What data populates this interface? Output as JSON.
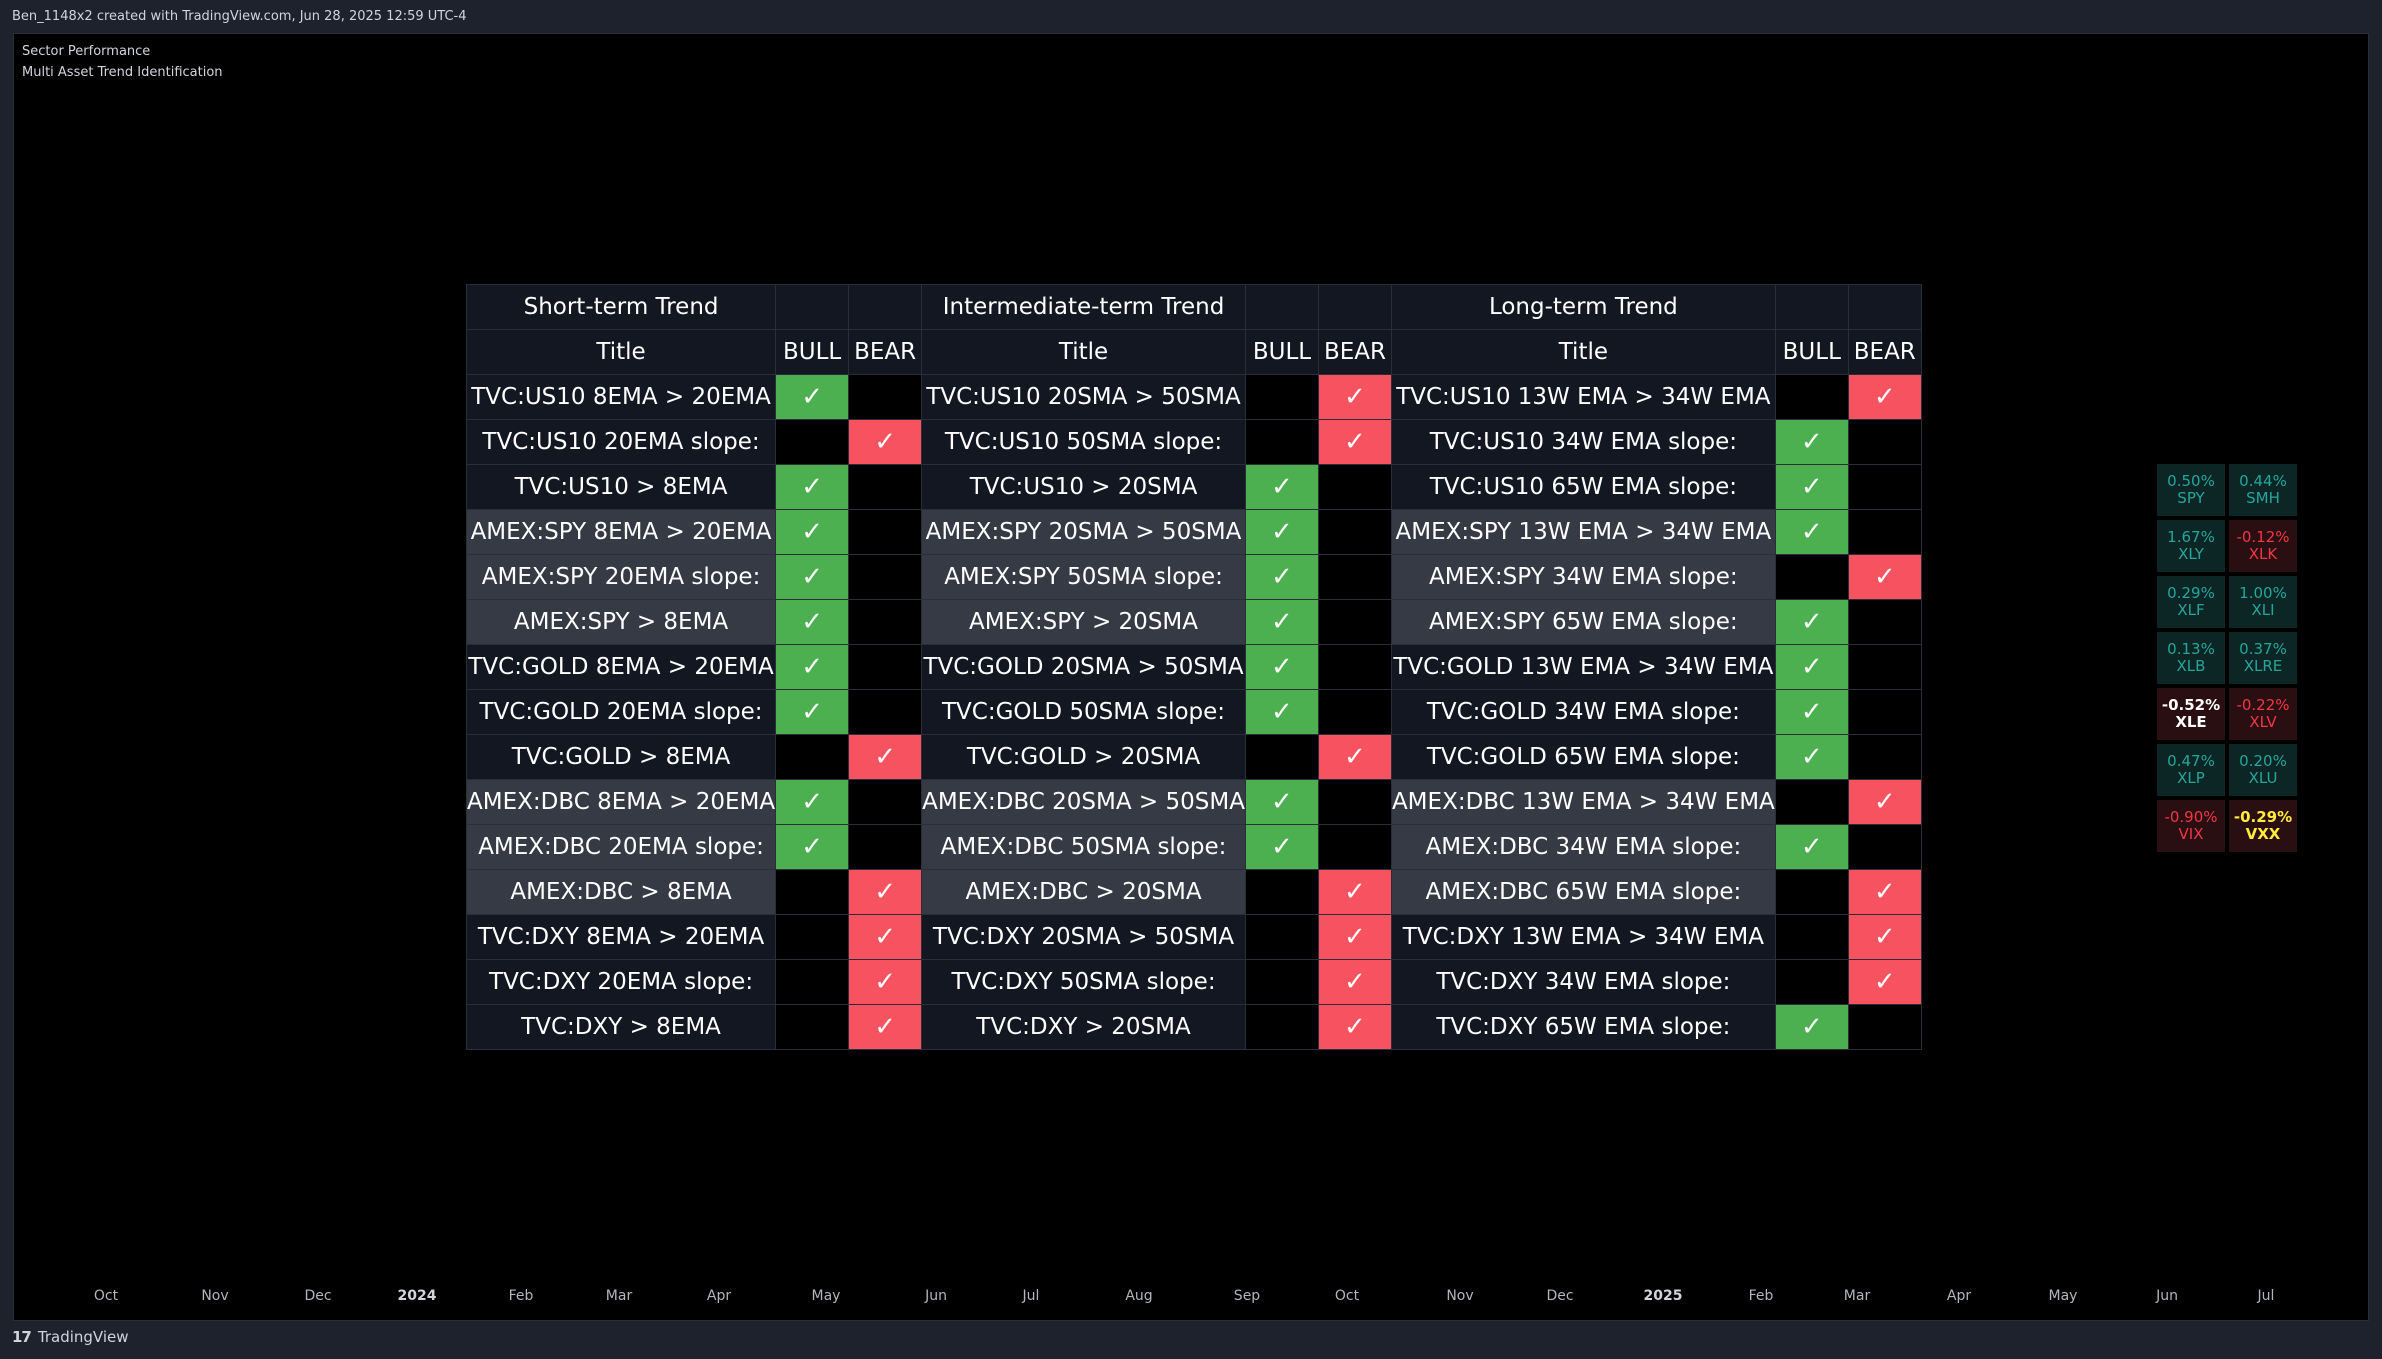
{
  "header": {
    "text": "Ben_1148x2 created with TradingView.com, Jun 28, 2025 12:59 UTC-4"
  },
  "legend": {
    "line1": "Sector Performance",
    "line2": "Multi Asset Trend Identification"
  },
  "table": {
    "sections": [
      "Short-term Trend",
      "Intermediate-term Trend",
      "Long-term Trend"
    ],
    "col_title": "Title",
    "col_bull": "BULL",
    "col_bear": "BEAR",
    "check": "✓",
    "rows": [
      {
        "shade": "dark",
        "cells": [
          {
            "title": "TVC:US10 8EMA > 20EMA",
            "flag": "bull"
          },
          {
            "title": "TVC:US10 20SMA > 50SMA",
            "flag": "bear"
          },
          {
            "title": "TVC:US10 13W EMA > 34W EMA",
            "flag": "bear"
          }
        ]
      },
      {
        "shade": "dark",
        "cells": [
          {
            "title": "TVC:US10 20EMA slope:",
            "flag": "bear"
          },
          {
            "title": "TVC:US10 50SMA slope:",
            "flag": "bear"
          },
          {
            "title": "TVC:US10 34W EMA slope:",
            "flag": "bull"
          }
        ]
      },
      {
        "shade": "dark",
        "cells": [
          {
            "title": "TVC:US10 > 8EMA",
            "flag": "bull"
          },
          {
            "title": "TVC:US10 > 20SMA",
            "flag": "bull"
          },
          {
            "title": "TVC:US10 65W EMA slope:",
            "flag": "bull"
          }
        ]
      },
      {
        "shade": "gray",
        "cells": [
          {
            "title": "AMEX:SPY 8EMA > 20EMA",
            "flag": "bull"
          },
          {
            "title": "AMEX:SPY 20SMA > 50SMA",
            "flag": "bull"
          },
          {
            "title": "AMEX:SPY 13W EMA > 34W EMA",
            "flag": "bull"
          }
        ]
      },
      {
        "shade": "gray",
        "cells": [
          {
            "title": "AMEX:SPY 20EMA slope:",
            "flag": "bull"
          },
          {
            "title": "AMEX:SPY 50SMA slope:",
            "flag": "bull"
          },
          {
            "title": "AMEX:SPY 34W EMA slope:",
            "flag": "bear"
          }
        ]
      },
      {
        "shade": "gray",
        "cells": [
          {
            "title": "AMEX:SPY > 8EMA",
            "flag": "bull"
          },
          {
            "title": "AMEX:SPY > 20SMA",
            "flag": "bull"
          },
          {
            "title": "AMEX:SPY 65W EMA slope:",
            "flag": "bull"
          }
        ]
      },
      {
        "shade": "dark",
        "cells": [
          {
            "title": "TVC:GOLD 8EMA > 20EMA",
            "flag": "bull"
          },
          {
            "title": "TVC:GOLD 20SMA > 50SMA",
            "flag": "bull"
          },
          {
            "title": "TVC:GOLD 13W EMA > 34W EMA",
            "flag": "bull"
          }
        ]
      },
      {
        "shade": "dark",
        "cells": [
          {
            "title": "TVC:GOLD 20EMA slope:",
            "flag": "bull"
          },
          {
            "title": "TVC:GOLD 50SMA slope:",
            "flag": "bull"
          },
          {
            "title": "TVC:GOLD 34W EMA slope:",
            "flag": "bull"
          }
        ]
      },
      {
        "shade": "dark",
        "cells": [
          {
            "title": "TVC:GOLD > 8EMA",
            "flag": "bear"
          },
          {
            "title": "TVC:GOLD > 20SMA",
            "flag": "bear"
          },
          {
            "title": "TVC:GOLD 65W EMA slope:",
            "flag": "bull"
          }
        ]
      },
      {
        "shade": "gray",
        "cells": [
          {
            "title": "AMEX:DBC 8EMA > 20EMA",
            "flag": "bull"
          },
          {
            "title": "AMEX:DBC 20SMA > 50SMA",
            "flag": "bull"
          },
          {
            "title": "AMEX:DBC 13W EMA > 34W EMA",
            "flag": "bear"
          }
        ]
      },
      {
        "shade": "gray",
        "cells": [
          {
            "title": "AMEX:DBC 20EMA slope:",
            "flag": "bull"
          },
          {
            "title": "AMEX:DBC 50SMA slope:",
            "flag": "bull"
          },
          {
            "title": "AMEX:DBC 34W EMA slope:",
            "flag": "bull"
          }
        ]
      },
      {
        "shade": "gray",
        "cells": [
          {
            "title": "AMEX:DBC > 8EMA",
            "flag": "bear"
          },
          {
            "title": "AMEX:DBC > 20SMA",
            "flag": "bear"
          },
          {
            "title": "AMEX:DBC 65W EMA slope:",
            "flag": "bear"
          }
        ]
      },
      {
        "shade": "dark",
        "cells": [
          {
            "title": "TVC:DXY 8EMA > 20EMA",
            "flag": "bear"
          },
          {
            "title": "TVC:DXY 20SMA > 50SMA",
            "flag": "bear"
          },
          {
            "title": "TVC:DXY 13W EMA > 34W EMA",
            "flag": "bear"
          }
        ]
      },
      {
        "shade": "dark",
        "cells": [
          {
            "title": "TVC:DXY 20EMA slope:",
            "flag": "bear"
          },
          {
            "title": "TVC:DXY 50SMA slope:",
            "flag": "bear"
          },
          {
            "title": "TVC:DXY 34W EMA slope:",
            "flag": "bear"
          }
        ]
      },
      {
        "shade": "dark",
        "cells": [
          {
            "title": "TVC:DXY > 8EMA",
            "flag": "bear"
          },
          {
            "title": "TVC:DXY > 20SMA",
            "flag": "bear"
          },
          {
            "title": "TVC:DXY 65W EMA slope:",
            "flag": "bull"
          }
        ]
      }
    ]
  },
  "sector_performance": [
    [
      {
        "pct": "0.50%",
        "ticker": "SPY",
        "tone": "up"
      },
      {
        "pct": "0.44%",
        "ticker": "SMH",
        "tone": "up"
      }
    ],
    [
      {
        "pct": "1.67%",
        "ticker": "XLY",
        "tone": "up"
      },
      {
        "pct": "-0.12%",
        "ticker": "XLK",
        "tone": "down"
      }
    ],
    [
      {
        "pct": "0.29%",
        "ticker": "XLF",
        "tone": "up"
      },
      {
        "pct": "1.00%",
        "ticker": "XLI",
        "tone": "up"
      }
    ],
    [
      {
        "pct": "0.13%",
        "ticker": "XLB",
        "tone": "up"
      },
      {
        "pct": "0.37%",
        "ticker": "XLRE",
        "tone": "up"
      }
    ],
    [
      {
        "pct": "-0.52%",
        "ticker": "XLE",
        "tone": "worst"
      },
      {
        "pct": "-0.22%",
        "ticker": "XLV",
        "tone": "down"
      }
    ],
    [
      {
        "pct": "0.47%",
        "ticker": "XLP",
        "tone": "up"
      },
      {
        "pct": "0.20%",
        "ticker": "XLU",
        "tone": "up"
      }
    ],
    [
      {
        "pct": "-0.90%",
        "ticker": "VIX",
        "tone": "down"
      },
      {
        "pct": "-0.29%",
        "ticker": "VXX",
        "tone": "highlight"
      }
    ]
  ],
  "tones": {
    "up": {
      "bg": "#0c2626",
      "fg": "#26a69a"
    },
    "down": {
      "bg": "#2a0f12",
      "fg": "#f23645"
    },
    "worst": {
      "bg": "#2a0f12",
      "fg": "#ffffff"
    },
    "highlight": {
      "bg": "#2a0f12",
      "fg": "#ffeb3b"
    }
  },
  "xaxis": [
    {
      "label": "Oct",
      "bold": false
    },
    {
      "label": "Nov",
      "bold": false
    },
    {
      "label": "Dec",
      "bold": false
    },
    {
      "label": "2024",
      "bold": true
    },
    {
      "label": "Feb",
      "bold": false
    },
    {
      "label": "Mar",
      "bold": false
    },
    {
      "label": "Apr",
      "bold": false
    },
    {
      "label": "May",
      "bold": false
    },
    {
      "label": "Jun",
      "bold": false
    },
    {
      "label": "Jul",
      "bold": false
    },
    {
      "label": "Aug",
      "bold": false
    },
    {
      "label": "Sep",
      "bold": false
    },
    {
      "label": "Oct",
      "bold": false
    },
    {
      "label": "Nov",
      "bold": false
    },
    {
      "label": "Dec",
      "bold": false
    },
    {
      "label": "2025",
      "bold": true
    },
    {
      "label": "Feb",
      "bold": false
    },
    {
      "label": "Mar",
      "bold": false
    },
    {
      "label": "Apr",
      "bold": false
    },
    {
      "label": "May",
      "bold": false
    },
    {
      "label": "Jun",
      "bold": false
    },
    {
      "label": "Jul",
      "bold": false
    }
  ],
  "footer": {
    "logo": "17",
    "brand": "TradingView"
  }
}
